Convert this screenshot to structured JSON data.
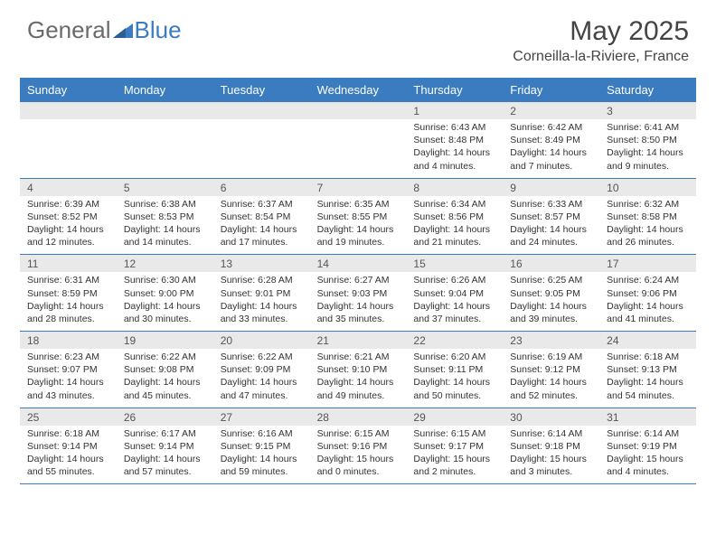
{
  "brand": {
    "part1": "General",
    "part2": "Blue"
  },
  "title": "May 2025",
  "location": "Corneilla-la-Riviere, France",
  "colors": {
    "accent": "#3b7bbf",
    "daynum_bg": "#e9e9e9",
    "text": "#333333",
    "header_text": "#ffffff"
  },
  "day_names": [
    "Sunday",
    "Monday",
    "Tuesday",
    "Wednesday",
    "Thursday",
    "Friday",
    "Saturday"
  ],
  "weeks": [
    [
      {
        "num": "",
        "sunrise": "",
        "sunset": "",
        "daylight": ""
      },
      {
        "num": "",
        "sunrise": "",
        "sunset": "",
        "daylight": ""
      },
      {
        "num": "",
        "sunrise": "",
        "sunset": "",
        "daylight": ""
      },
      {
        "num": "",
        "sunrise": "",
        "sunset": "",
        "daylight": ""
      },
      {
        "num": "1",
        "sunrise": "Sunrise: 6:43 AM",
        "sunset": "Sunset: 8:48 PM",
        "daylight": "Daylight: 14 hours and 4 minutes."
      },
      {
        "num": "2",
        "sunrise": "Sunrise: 6:42 AM",
        "sunset": "Sunset: 8:49 PM",
        "daylight": "Daylight: 14 hours and 7 minutes."
      },
      {
        "num": "3",
        "sunrise": "Sunrise: 6:41 AM",
        "sunset": "Sunset: 8:50 PM",
        "daylight": "Daylight: 14 hours and 9 minutes."
      }
    ],
    [
      {
        "num": "4",
        "sunrise": "Sunrise: 6:39 AM",
        "sunset": "Sunset: 8:52 PM",
        "daylight": "Daylight: 14 hours and 12 minutes."
      },
      {
        "num": "5",
        "sunrise": "Sunrise: 6:38 AM",
        "sunset": "Sunset: 8:53 PM",
        "daylight": "Daylight: 14 hours and 14 minutes."
      },
      {
        "num": "6",
        "sunrise": "Sunrise: 6:37 AM",
        "sunset": "Sunset: 8:54 PM",
        "daylight": "Daylight: 14 hours and 17 minutes."
      },
      {
        "num": "7",
        "sunrise": "Sunrise: 6:35 AM",
        "sunset": "Sunset: 8:55 PM",
        "daylight": "Daylight: 14 hours and 19 minutes."
      },
      {
        "num": "8",
        "sunrise": "Sunrise: 6:34 AM",
        "sunset": "Sunset: 8:56 PM",
        "daylight": "Daylight: 14 hours and 21 minutes."
      },
      {
        "num": "9",
        "sunrise": "Sunrise: 6:33 AM",
        "sunset": "Sunset: 8:57 PM",
        "daylight": "Daylight: 14 hours and 24 minutes."
      },
      {
        "num": "10",
        "sunrise": "Sunrise: 6:32 AM",
        "sunset": "Sunset: 8:58 PM",
        "daylight": "Daylight: 14 hours and 26 minutes."
      }
    ],
    [
      {
        "num": "11",
        "sunrise": "Sunrise: 6:31 AM",
        "sunset": "Sunset: 8:59 PM",
        "daylight": "Daylight: 14 hours and 28 minutes."
      },
      {
        "num": "12",
        "sunrise": "Sunrise: 6:30 AM",
        "sunset": "Sunset: 9:00 PM",
        "daylight": "Daylight: 14 hours and 30 minutes."
      },
      {
        "num": "13",
        "sunrise": "Sunrise: 6:28 AM",
        "sunset": "Sunset: 9:01 PM",
        "daylight": "Daylight: 14 hours and 33 minutes."
      },
      {
        "num": "14",
        "sunrise": "Sunrise: 6:27 AM",
        "sunset": "Sunset: 9:03 PM",
        "daylight": "Daylight: 14 hours and 35 minutes."
      },
      {
        "num": "15",
        "sunrise": "Sunrise: 6:26 AM",
        "sunset": "Sunset: 9:04 PM",
        "daylight": "Daylight: 14 hours and 37 minutes."
      },
      {
        "num": "16",
        "sunrise": "Sunrise: 6:25 AM",
        "sunset": "Sunset: 9:05 PM",
        "daylight": "Daylight: 14 hours and 39 minutes."
      },
      {
        "num": "17",
        "sunrise": "Sunrise: 6:24 AM",
        "sunset": "Sunset: 9:06 PM",
        "daylight": "Daylight: 14 hours and 41 minutes."
      }
    ],
    [
      {
        "num": "18",
        "sunrise": "Sunrise: 6:23 AM",
        "sunset": "Sunset: 9:07 PM",
        "daylight": "Daylight: 14 hours and 43 minutes."
      },
      {
        "num": "19",
        "sunrise": "Sunrise: 6:22 AM",
        "sunset": "Sunset: 9:08 PM",
        "daylight": "Daylight: 14 hours and 45 minutes."
      },
      {
        "num": "20",
        "sunrise": "Sunrise: 6:22 AM",
        "sunset": "Sunset: 9:09 PM",
        "daylight": "Daylight: 14 hours and 47 minutes."
      },
      {
        "num": "21",
        "sunrise": "Sunrise: 6:21 AM",
        "sunset": "Sunset: 9:10 PM",
        "daylight": "Daylight: 14 hours and 49 minutes."
      },
      {
        "num": "22",
        "sunrise": "Sunrise: 6:20 AM",
        "sunset": "Sunset: 9:11 PM",
        "daylight": "Daylight: 14 hours and 50 minutes."
      },
      {
        "num": "23",
        "sunrise": "Sunrise: 6:19 AM",
        "sunset": "Sunset: 9:12 PM",
        "daylight": "Daylight: 14 hours and 52 minutes."
      },
      {
        "num": "24",
        "sunrise": "Sunrise: 6:18 AM",
        "sunset": "Sunset: 9:13 PM",
        "daylight": "Daylight: 14 hours and 54 minutes."
      }
    ],
    [
      {
        "num": "25",
        "sunrise": "Sunrise: 6:18 AM",
        "sunset": "Sunset: 9:14 PM",
        "daylight": "Daylight: 14 hours and 55 minutes."
      },
      {
        "num": "26",
        "sunrise": "Sunrise: 6:17 AM",
        "sunset": "Sunset: 9:14 PM",
        "daylight": "Daylight: 14 hours and 57 minutes."
      },
      {
        "num": "27",
        "sunrise": "Sunrise: 6:16 AM",
        "sunset": "Sunset: 9:15 PM",
        "daylight": "Daylight: 14 hours and 59 minutes."
      },
      {
        "num": "28",
        "sunrise": "Sunrise: 6:15 AM",
        "sunset": "Sunset: 9:16 PM",
        "daylight": "Daylight: 15 hours and 0 minutes."
      },
      {
        "num": "29",
        "sunrise": "Sunrise: 6:15 AM",
        "sunset": "Sunset: 9:17 PM",
        "daylight": "Daylight: 15 hours and 2 minutes."
      },
      {
        "num": "30",
        "sunrise": "Sunrise: 6:14 AM",
        "sunset": "Sunset: 9:18 PM",
        "daylight": "Daylight: 15 hours and 3 minutes."
      },
      {
        "num": "31",
        "sunrise": "Sunrise: 6:14 AM",
        "sunset": "Sunset: 9:19 PM",
        "daylight": "Daylight: 15 hours and 4 minutes."
      }
    ]
  ]
}
